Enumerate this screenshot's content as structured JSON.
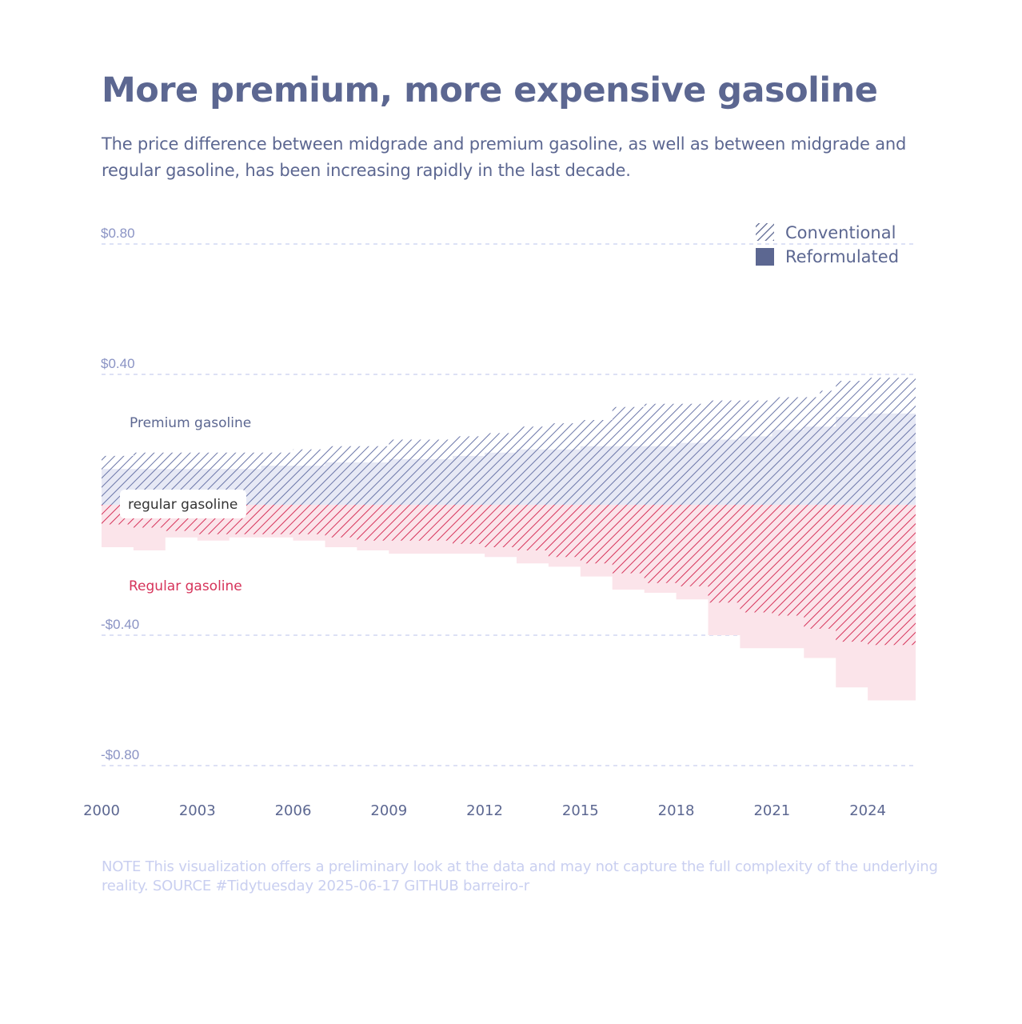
{
  "title": "More premium, more expensive gasoline",
  "subtitle": "The price difference between midgrade and premium gasoline, as well as between midgrade and regular gasoline, has been increasing rapidly in the last decade.",
  "note": "NOTE This visualization offers a preliminary look at the data and may not capture the full complexity of the underlying reality. SOURCE #Tidytuesday 2025-06-17 GITHUB barreiro-r",
  "colors": {
    "premium": "#6b76a8",
    "premium_fill": "#e7e9f5",
    "regular": "#d6335a",
    "regular_fill": "#fbe4ea",
    "axis_text": "#8a93c4",
    "grid": "#dde1f5",
    "text": "#5c6791"
  },
  "chart_data": {
    "type": "area",
    "y_tick_labels": [
      "$0.80",
      "$0.40",
      "-$0.40",
      "-$0.80"
    ],
    "y_ticks": [
      0.8,
      0.4,
      -0.4,
      -0.8
    ],
    "x_tick_labels": [
      "2000",
      "2003",
      "2006",
      "2009",
      "2012",
      "2015",
      "2018",
      "2021",
      "2024"
    ],
    "x_ticks": [
      2000,
      2003,
      2006,
      2009,
      2012,
      2015,
      2018,
      2021,
      2024
    ],
    "xlim": [
      2000,
      2025.5
    ],
    "ylim": [
      -0.8,
      0.8
    ],
    "grid": "horizontal dashed",
    "legend": {
      "placement": "top-right",
      "items": [
        {
          "label": "Conventional",
          "style": "hatched"
        },
        {
          "label": "Reformulated",
          "style": "solid"
        }
      ]
    },
    "annotations": {
      "premium_label": "Premium gasoline",
      "baseline_label": "regular gasoline",
      "regular_label": "Regular gasoline"
    },
    "series": [
      {
        "name": "Premium gasoline",
        "group": "Conventional",
        "x": [
          2000,
          2001,
          2002,
          2003,
          2004,
          2005,
          2006,
          2007,
          2008,
          2009,
          2010,
          2011,
          2012,
          2013,
          2014,
          2015,
          2016,
          2017,
          2018,
          2019,
          2020,
          2021,
          2022,
          2022.5,
          2023,
          2024,
          2025.5
        ],
        "values": [
          0.15,
          0.16,
          0.16,
          0.16,
          0.16,
          0.16,
          0.17,
          0.18,
          0.18,
          0.2,
          0.2,
          0.21,
          0.22,
          0.24,
          0.25,
          0.26,
          0.3,
          0.31,
          0.31,
          0.32,
          0.32,
          0.33,
          0.33,
          0.35,
          0.38,
          0.39,
          0.4
        ]
      },
      {
        "name": "Premium gasoline",
        "group": "Reformulated",
        "x": [
          2000,
          2001,
          2002,
          2003,
          2004,
          2005,
          2006,
          2007,
          2008,
          2009,
          2010,
          2011,
          2012,
          2013,
          2014,
          2015,
          2016,
          2017,
          2018,
          2019,
          2020,
          2021,
          2022,
          2023,
          2024,
          2025.5
        ],
        "values": [
          0.11,
          0.11,
          0.11,
          0.11,
          0.11,
          0.12,
          0.12,
          0.13,
          0.13,
          0.14,
          0.14,
          0.15,
          0.16,
          0.17,
          0.17,
          0.18,
          0.18,
          0.18,
          0.19,
          0.2,
          0.21,
          0.23,
          0.24,
          0.27,
          0.28,
          0.29
        ]
      },
      {
        "name": "Regular gasoline",
        "group": "Conventional",
        "x": [
          2000,
          2001,
          2002,
          2003,
          2004,
          2005,
          2006,
          2007,
          2008,
          2009,
          2010,
          2011,
          2012,
          2013,
          2014,
          2015,
          2016,
          2017,
          2018,
          2019,
          2020,
          2021,
          2022,
          2023,
          2024,
          2025.5
        ],
        "values": [
          -0.06,
          -0.07,
          -0.08,
          -0.09,
          -0.09,
          -0.09,
          -0.09,
          -0.1,
          -0.11,
          -0.11,
          -0.11,
          -0.12,
          -0.13,
          -0.14,
          -0.16,
          -0.18,
          -0.21,
          -0.24,
          -0.25,
          -0.3,
          -0.33,
          -0.34,
          -0.38,
          -0.42,
          -0.43,
          -0.46
        ]
      },
      {
        "name": "Regular gasoline",
        "group": "Reformulated",
        "x": [
          2000,
          2001,
          2002,
          2003,
          2004,
          2005,
          2006,
          2007,
          2008,
          2009,
          2010,
          2011,
          2012,
          2013,
          2014,
          2015,
          2016,
          2017,
          2018,
          2019,
          2020,
          2021,
          2022,
          2023,
          2024,
          2025.5
        ],
        "values": [
          -0.13,
          -0.14,
          -0.1,
          -0.11,
          -0.1,
          -0.1,
          -0.11,
          -0.13,
          -0.14,
          -0.15,
          -0.15,
          -0.15,
          -0.16,
          -0.18,
          -0.19,
          -0.22,
          -0.26,
          -0.27,
          -0.29,
          -0.4,
          -0.44,
          -0.44,
          -0.47,
          -0.56,
          -0.6,
          -0.64
        ]
      }
    ]
  }
}
